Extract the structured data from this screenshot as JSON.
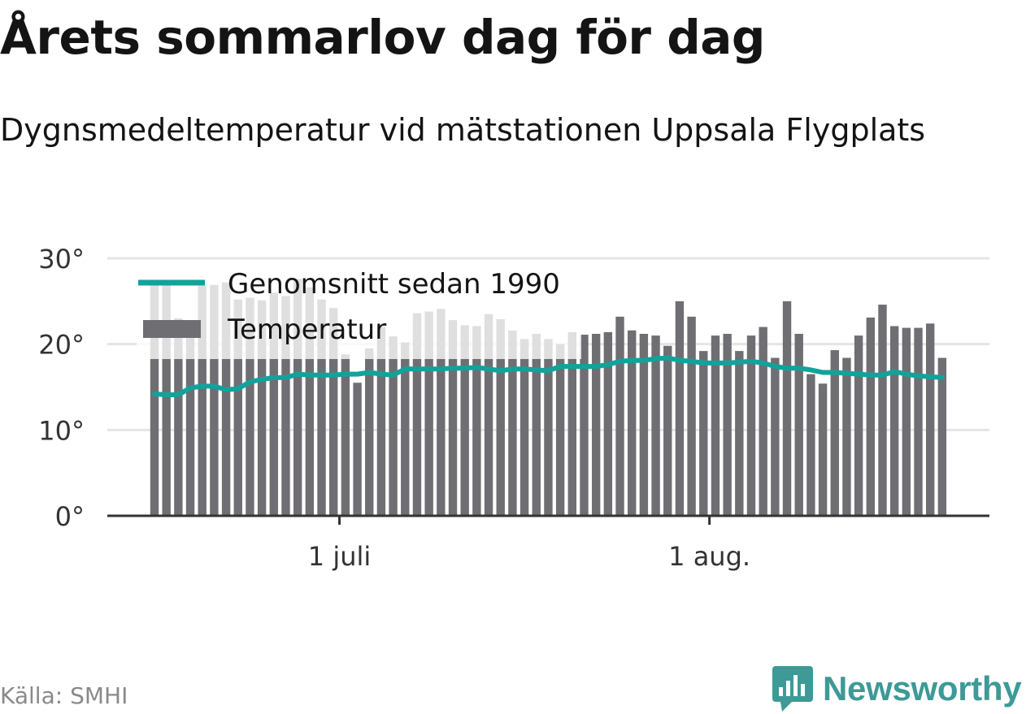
{
  "header": {
    "title": "Årets sommarlov dag för dag",
    "subtitle": "Dygnsmedeltemperatur vid mätstationen Uppsala Flygplats"
  },
  "footer": {
    "source": "Källa: SMHI",
    "brand": "Newsworthy"
  },
  "colors": {
    "bar": "#6f6e73",
    "bar_faded": "#e4e4e6",
    "line": "#11a39b",
    "grid": "#e5e5e5",
    "axis": "#333333",
    "brand": "#3d9a96"
  },
  "chart_data": {
    "type": "bar",
    "start_date": "2020-06-15",
    "x_ticks": [
      "1 juli",
      "1 aug."
    ],
    "y_ticks": [
      "0°",
      "10°",
      "20°",
      "30°"
    ],
    "ylim": [
      0,
      30
    ],
    "grid": true,
    "legend_position": "top-left",
    "series": [
      {
        "name": "Temperatur",
        "type": "bar",
        "values": [
          27.0,
          27.0,
          23.0,
          22.5,
          26.8,
          26.9,
          27.2,
          25.2,
          25.4,
          25.1,
          26.0,
          25.6,
          27.6,
          26.6,
          25.2,
          24.2,
          18.8,
          15.5,
          19.5,
          22.0,
          20.9,
          20.2,
          23.6,
          23.8,
          24.1,
          22.8,
          22.2,
          22.1,
          23.5,
          22.9,
          21.6,
          20.6,
          21.2,
          20.6,
          20.0,
          21.4,
          21.1,
          21.2,
          21.4,
          23.2,
          21.6,
          21.2,
          21.0,
          19.8,
          25.0,
          23.2,
          19.2,
          21.0,
          21.2,
          19.2,
          21.0,
          22.0,
          18.4,
          25.0,
          21.2,
          16.5,
          15.4,
          19.3,
          18.4,
          21.0,
          23.1,
          24.6,
          22.1,
          21.9,
          21.9,
          22.4,
          18.4
        ]
      },
      {
        "name": "Genomsnitt sedan 1990",
        "type": "line",
        "values": [
          14.2,
          14.1,
          14.1,
          14.9,
          15.1,
          15.1,
          14.7,
          14.8,
          15.6,
          15.9,
          16.1,
          16.1,
          16.5,
          16.4,
          16.4,
          16.4,
          16.5,
          16.5,
          16.7,
          16.5,
          16.4,
          17.1,
          17.1,
          17.1,
          17.1,
          17.2,
          17.2,
          17.3,
          17.1,
          16.9,
          17.1,
          17.1,
          17.0,
          16.9,
          17.4,
          17.4,
          17.4,
          17.4,
          17.6,
          18.0,
          18.1,
          18.1,
          18.3,
          18.4,
          18.1,
          18.0,
          17.8,
          17.8,
          17.8,
          17.9,
          18.0,
          17.8,
          17.4,
          17.2,
          17.2,
          17.0,
          16.7,
          16.7,
          16.6,
          16.5,
          16.4,
          16.4,
          16.8,
          16.5,
          16.3,
          16.2,
          16.1
        ]
      }
    ]
  }
}
